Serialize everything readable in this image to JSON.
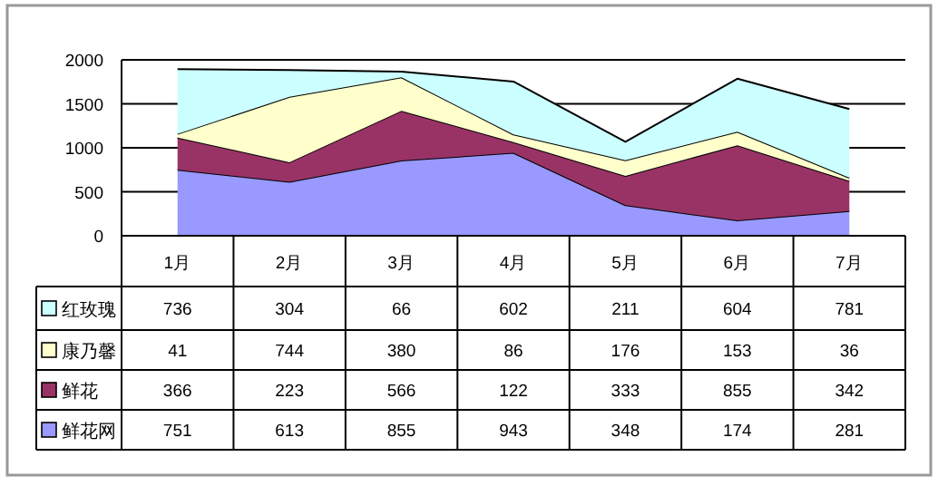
{
  "chart_data": {
    "type": "area",
    "stacked": true,
    "categories": [
      "1月",
      "2月",
      "3月",
      "4月",
      "5月",
      "6月",
      "7月"
    ],
    "series": [
      {
        "name": "鲜花网",
        "color": "#9999ff",
        "values": [
          751,
          613,
          855,
          943,
          348,
          174,
          281
        ]
      },
      {
        "name": "鲜花",
        "color": "#993366",
        "values": [
          366,
          223,
          566,
          122,
          333,
          855,
          342
        ]
      },
      {
        "name": "康乃馨",
        "color": "#ffffcc",
        "values": [
          41,
          744,
          380,
          86,
          176,
          153,
          36
        ]
      },
      {
        "name": "红玫瑰",
        "color": "#ccffff",
        "values": [
          736,
          304,
          66,
          602,
          211,
          604,
          781
        ]
      }
    ],
    "ylim": [
      0,
      2000
    ],
    "yticks": [
      0,
      500,
      1000,
      1500,
      2000
    ],
    "grid": "y",
    "data_labels": true,
    "legend": "bottom"
  }
}
